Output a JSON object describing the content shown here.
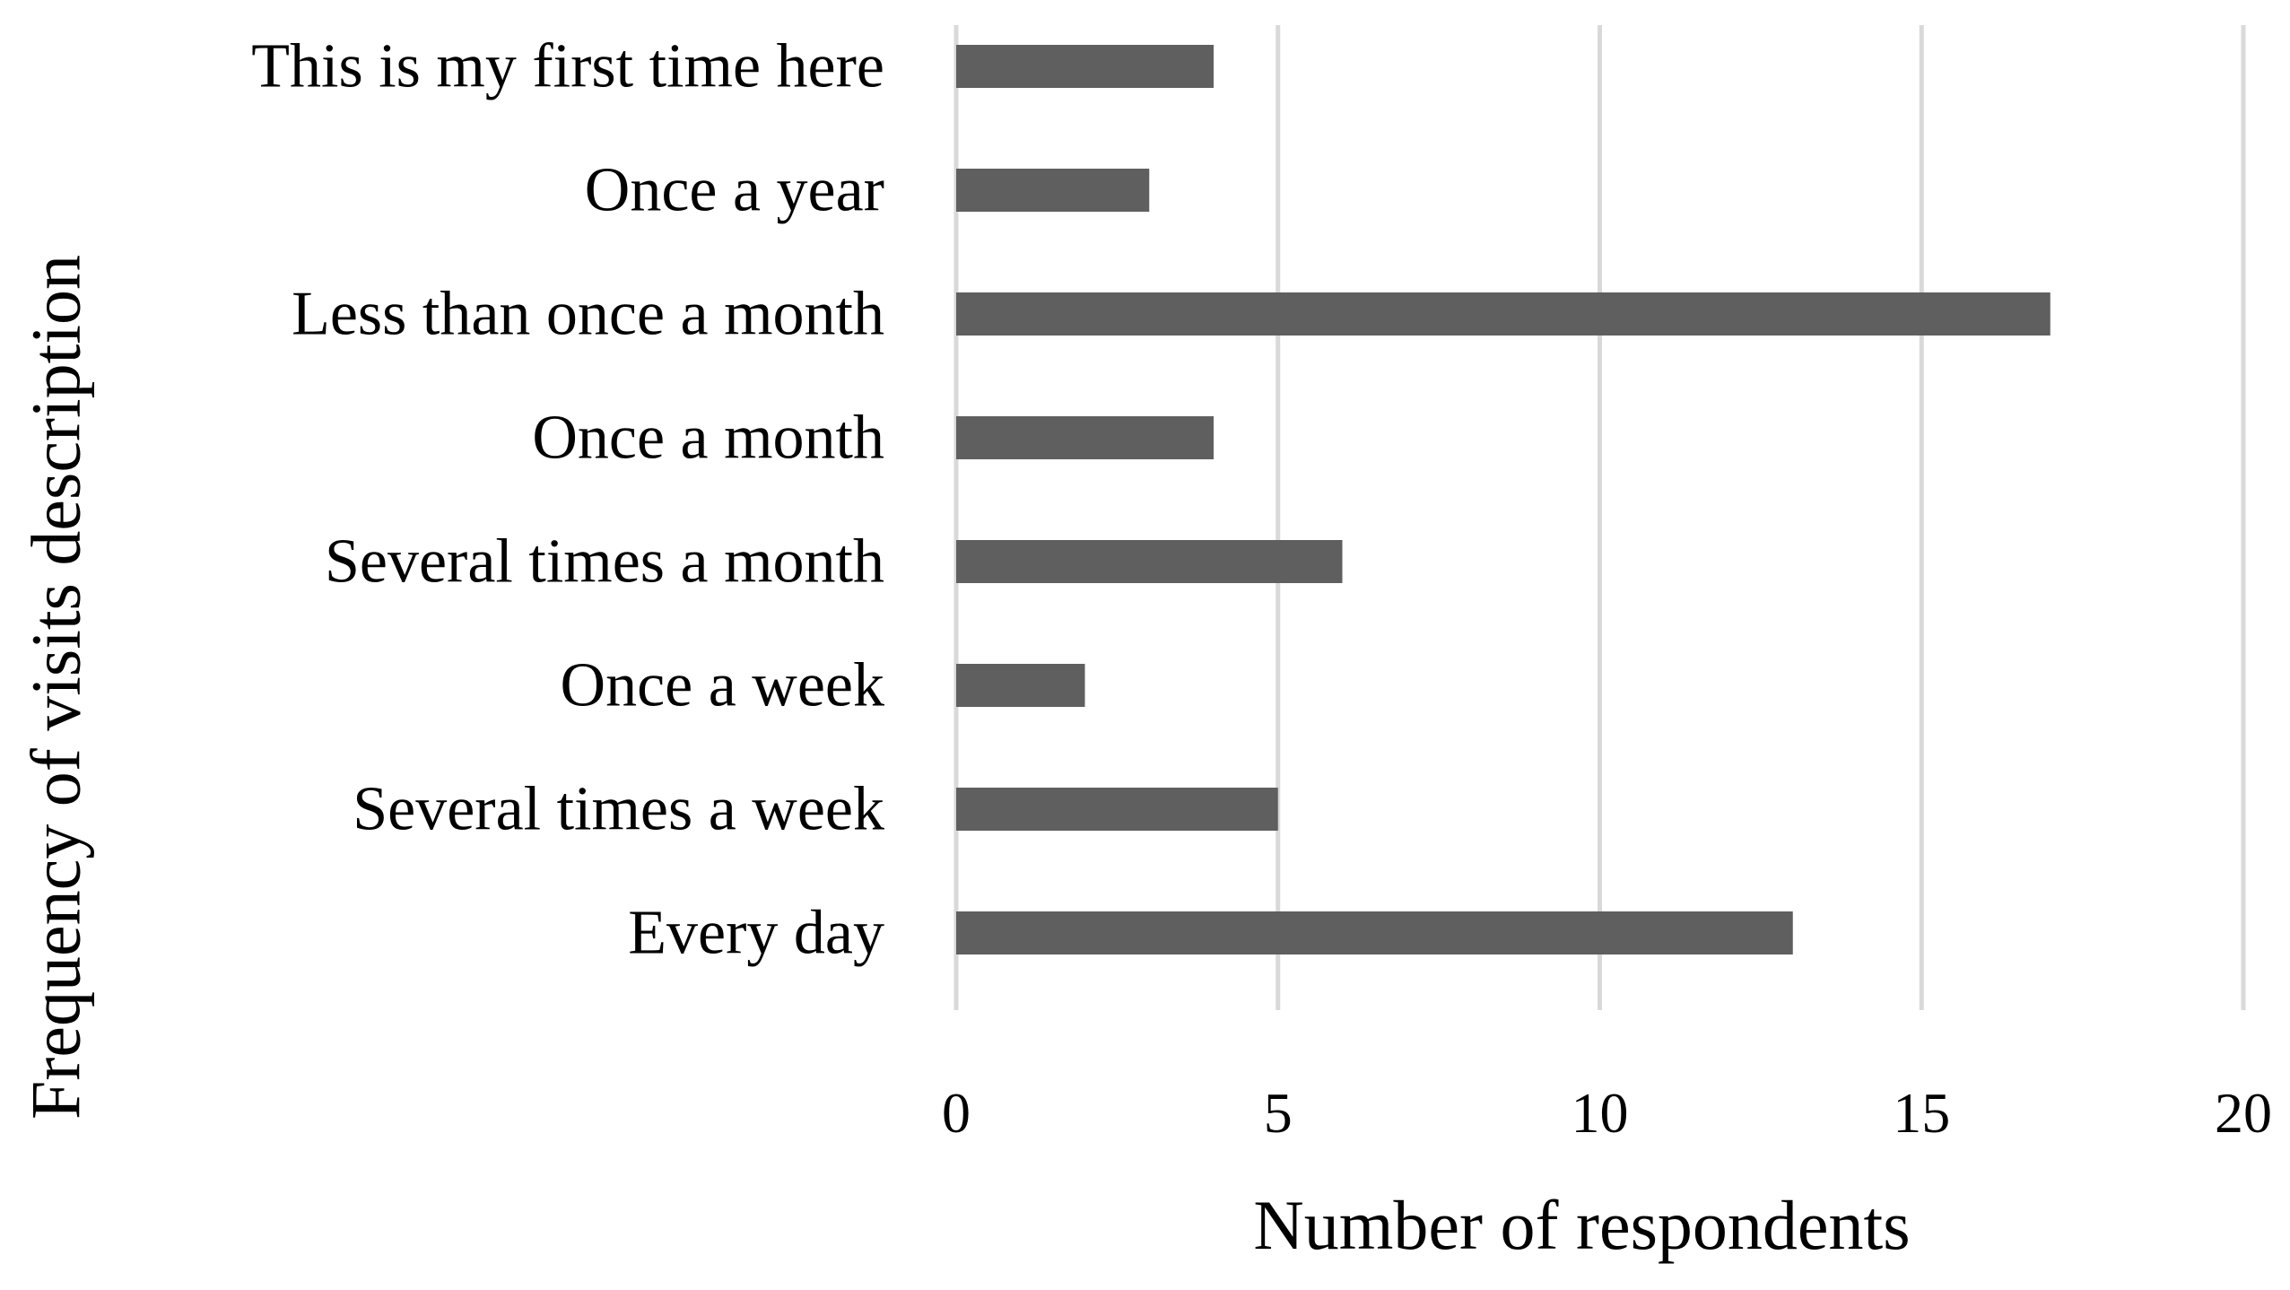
{
  "chart_data": {
    "type": "bar",
    "orientation": "horizontal",
    "categories": [
      "This is my first time here",
      "Once a year",
      "Less than once a month",
      "Once a month",
      "Several times a month",
      "Once a week",
      "Several times a week",
      "Every day"
    ],
    "values": [
      4,
      3,
      17,
      4,
      6,
      2,
      5,
      13
    ],
    "xlabel": "Number of respondents",
    "ylabel": "Frequency of visits description",
    "xlim": [
      0,
      20
    ],
    "xticks": [
      "0",
      "5",
      "10",
      "15",
      "20"
    ],
    "grid": "vertical",
    "legend": "none",
    "colors": {
      "bar": "#5f5f5f",
      "grid": "#d9d9d9",
      "text": "#000000"
    }
  }
}
